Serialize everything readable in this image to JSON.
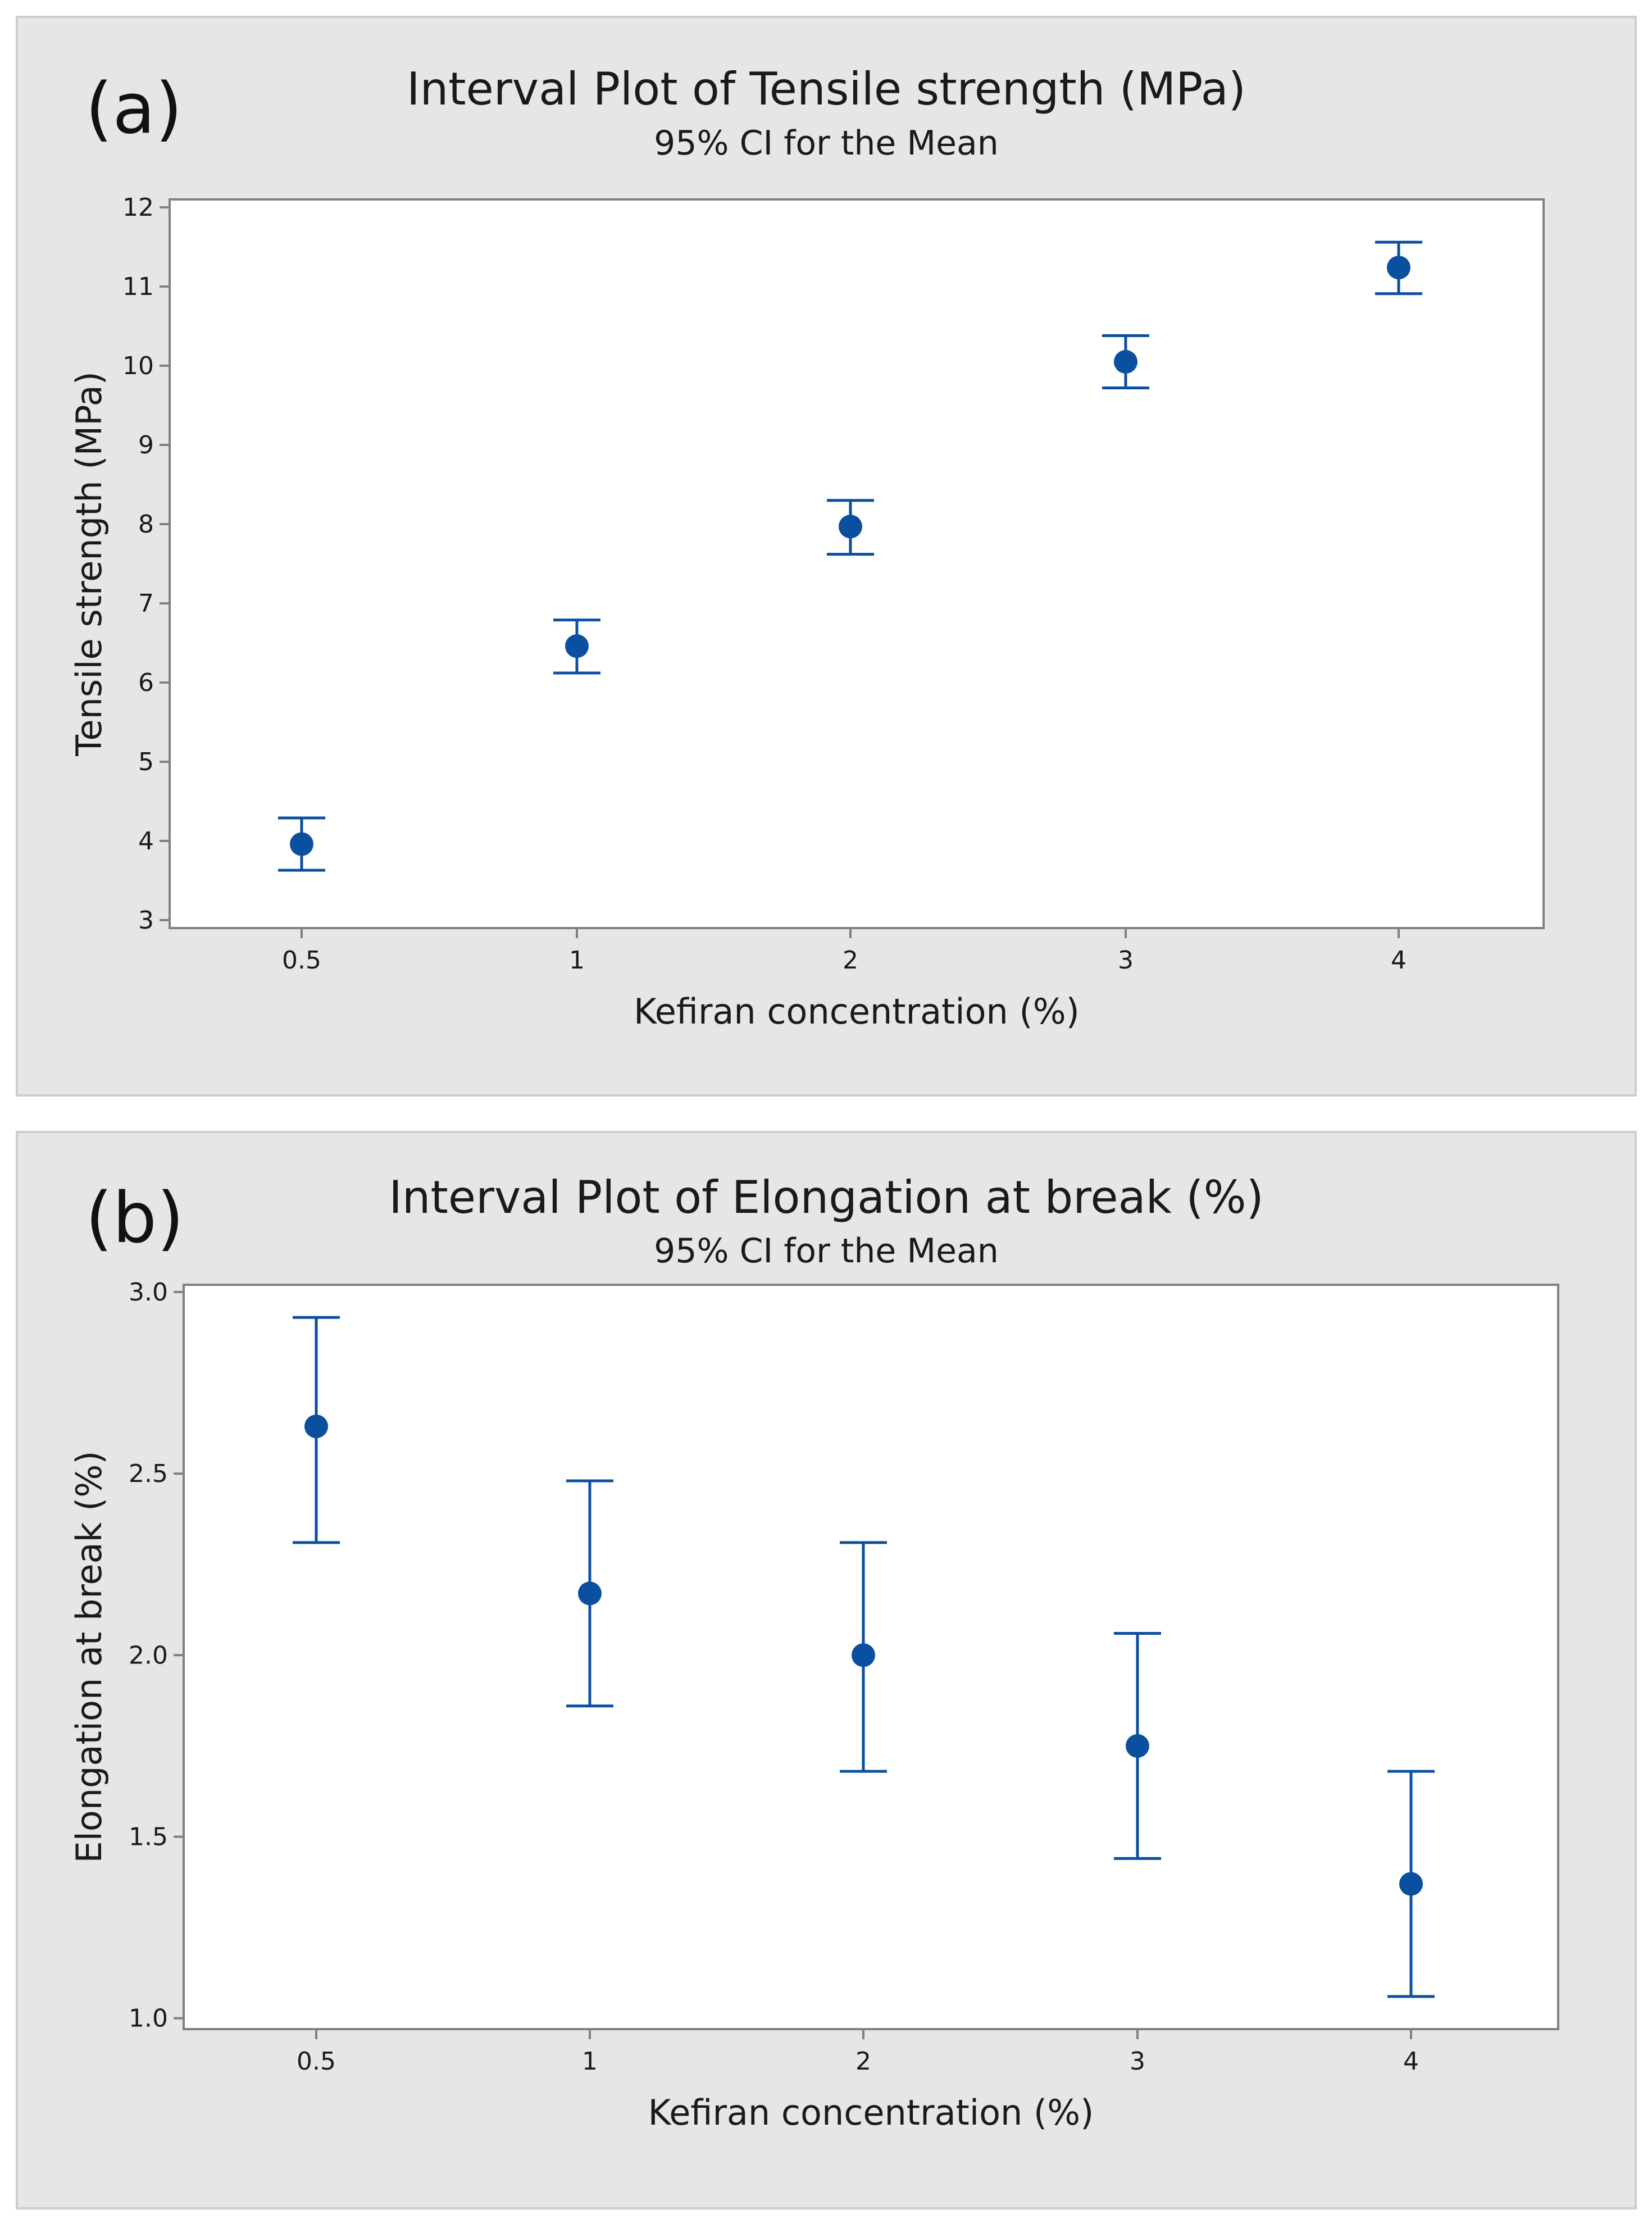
{
  "colors": {
    "panel_bg": "#e6e6e6",
    "plot_bg": "#ffffff",
    "marker": "#0a4fa0",
    "axis": "#808080"
  },
  "chart_data": [
    {
      "type": "interval",
      "panel_label": "(a)",
      "title": "Interval Plot of Tensile strength (MPa)",
      "subtitle": "95% CI for the Mean",
      "xlabel": "Kefiran concentration (%)",
      "ylabel": "Tensile strength (MPa)",
      "categories": [
        "0.5",
        "1",
        "2",
        "3",
        "4"
      ],
      "means": [
        3.96,
        6.46,
        7.97,
        10.05,
        11.24
      ],
      "lower": [
        3.63,
        6.12,
        7.62,
        9.72,
        10.91
      ],
      "upper": [
        4.29,
        6.79,
        8.3,
        10.38,
        11.56
      ],
      "ylim": [
        2.9,
        12.1
      ],
      "yticks": [
        3,
        4,
        5,
        6,
        7,
        8,
        9,
        10,
        11,
        12
      ],
      "ytick_labels": [
        "3",
        "4",
        "5",
        "6",
        "7",
        "8",
        "9",
        "10",
        "11",
        "12"
      ]
    },
    {
      "type": "interval",
      "panel_label": "(b)",
      "title": "Interval Plot of Elongation at break (%)",
      "subtitle": "95% CI for the Mean",
      "xlabel": "Kefiran concentration (%)",
      "ylabel": "Elongation at break (%)",
      "categories": [
        "0.5",
        "1",
        "2",
        "3",
        "4"
      ],
      "means": [
        2.63,
        2.17,
        2.0,
        1.75,
        1.37
      ],
      "lower": [
        2.31,
        1.86,
        1.68,
        1.44,
        1.06
      ],
      "upper": [
        2.93,
        2.48,
        2.31,
        2.06,
        1.68
      ],
      "ylim": [
        0.97,
        3.02
      ],
      "yticks": [
        1.0,
        1.5,
        2.0,
        2.5,
        3.0
      ],
      "ytick_labels": [
        "1.0",
        "1.5",
        "2.0",
        "2.5",
        "3.0"
      ]
    }
  ]
}
